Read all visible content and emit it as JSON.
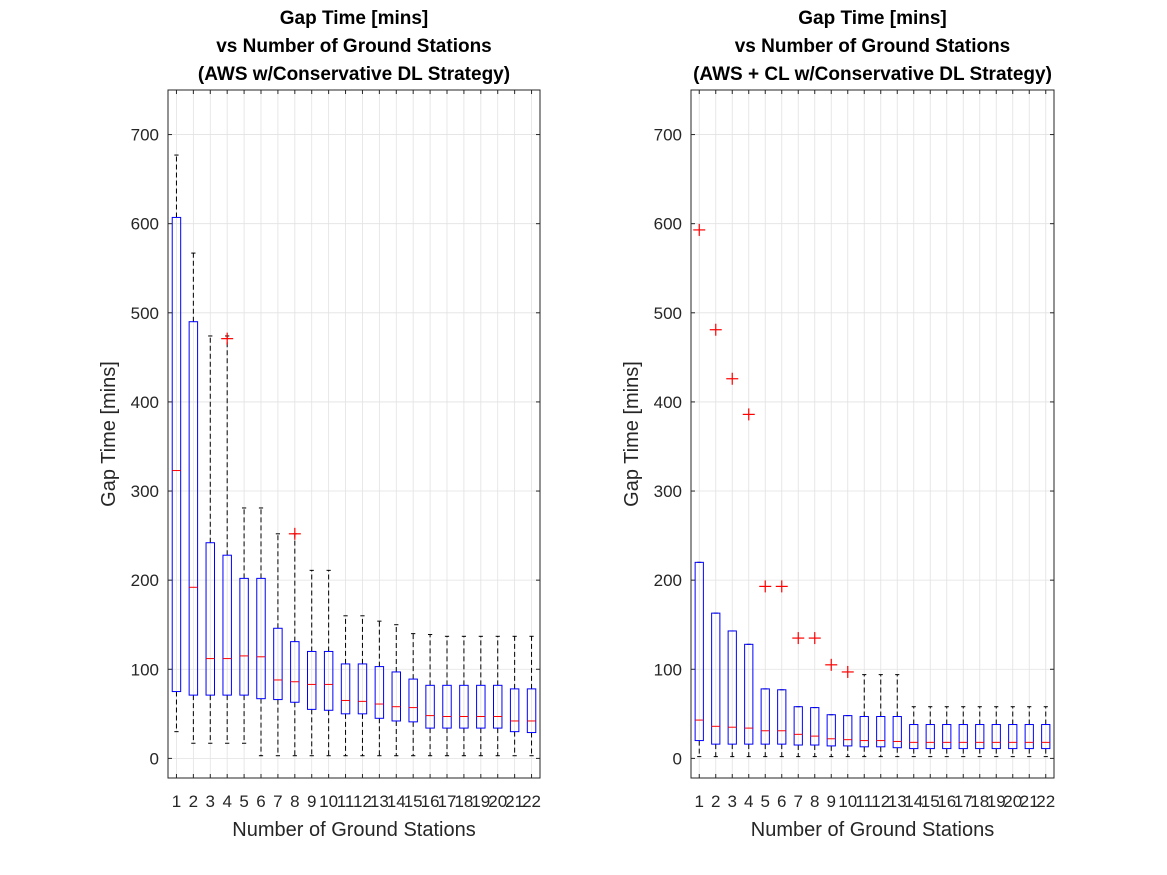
{
  "chart_data": [
    {
      "type": "boxplot",
      "title": [
        "Gap Time [mins]",
        "vs Number of Ground Stations",
        "(AWS w/Conservative DL Strategy)"
      ],
      "xlabel": "Number of Ground Stations",
      "ylabel": "Gap Time [mins]",
      "ylim": [
        -22,
        750
      ],
      "yticks": [
        0,
        100,
        200,
        300,
        400,
        500,
        600,
        700
      ],
      "grid": true,
      "categories": [
        "1",
        "2",
        "3",
        "4",
        "5",
        "6",
        "7",
        "8",
        "9",
        "10",
        "11",
        "12",
        "13",
        "14",
        "15",
        "16",
        "17",
        "18",
        "19",
        "20",
        "21",
        "22"
      ],
      "boxes": [
        {
          "min": 30,
          "q1": 75,
          "median": 323,
          "q3": 607,
          "max": 677,
          "outliers": []
        },
        {
          "min": 17,
          "q1": 71,
          "median": 192,
          "q3": 490,
          "max": 567,
          "outliers": []
        },
        {
          "min": 17,
          "q1": 71,
          "median": 112,
          "q3": 242,
          "max": 474,
          "outliers": []
        },
        {
          "min": 17,
          "q1": 71,
          "median": 112,
          "q3": 228,
          "max": 474,
          "outliers": [
            471
          ]
        },
        {
          "min": 17,
          "q1": 71,
          "median": 115,
          "q3": 202,
          "max": 281,
          "outliers": []
        },
        {
          "min": 3,
          "q1": 67,
          "median": 114,
          "q3": 202,
          "max": 281,
          "outliers": []
        },
        {
          "min": 3,
          "q1": 66,
          "median": 88,
          "q3": 146,
          "max": 252,
          "outliers": []
        },
        {
          "min": 3,
          "q1": 63,
          "median": 86,
          "q3": 131,
          "max": 252,
          "outliers": [
            252
          ]
        },
        {
          "min": 3,
          "q1": 55,
          "median": 83,
          "q3": 120,
          "max": 211,
          "outliers": []
        },
        {
          "min": 3,
          "q1": 54,
          "median": 83,
          "q3": 120,
          "max": 211,
          "outliers": []
        },
        {
          "min": 3,
          "q1": 50,
          "median": 65,
          "q3": 106,
          "max": 160,
          "outliers": []
        },
        {
          "min": 3,
          "q1": 50,
          "median": 64,
          "q3": 106,
          "max": 160,
          "outliers": []
        },
        {
          "min": 3,
          "q1": 45,
          "median": 61,
          "q3": 103,
          "max": 154,
          "outliers": []
        },
        {
          "min": 3,
          "q1": 42,
          "median": 58,
          "q3": 97,
          "max": 150,
          "outliers": []
        },
        {
          "min": 3,
          "q1": 41,
          "median": 57,
          "q3": 89,
          "max": 140,
          "outliers": []
        },
        {
          "min": 3,
          "q1": 34,
          "median": 48,
          "q3": 82,
          "max": 139,
          "outliers": []
        },
        {
          "min": 3,
          "q1": 34,
          "median": 47,
          "q3": 82,
          "max": 137,
          "outliers": []
        },
        {
          "min": 3,
          "q1": 34,
          "median": 47,
          "q3": 82,
          "max": 137,
          "outliers": []
        },
        {
          "min": 3,
          "q1": 34,
          "median": 47,
          "q3": 82,
          "max": 137,
          "outliers": []
        },
        {
          "min": 3,
          "q1": 34,
          "median": 47,
          "q3": 82,
          "max": 137,
          "outliers": []
        },
        {
          "min": 3,
          "q1": 30,
          "median": 42,
          "q3": 78,
          "max": 137,
          "outliers": []
        },
        {
          "min": 3,
          "q1": 29,
          "median": 42,
          "q3": 78,
          "max": 137,
          "outliers": []
        }
      ]
    },
    {
      "type": "boxplot",
      "title": [
        "Gap Time [mins]",
        "vs Number of Ground Stations",
        "(AWS + CL w/Conservative DL Strategy)"
      ],
      "xlabel": "Number of Ground Stations",
      "ylabel": "Gap Time [mins]",
      "ylim": [
        -22,
        750
      ],
      "yticks": [
        0,
        100,
        200,
        300,
        400,
        500,
        600,
        700
      ],
      "grid": true,
      "categories": [
        "1",
        "2",
        "3",
        "4",
        "5",
        "6",
        "7",
        "8",
        "9",
        "10",
        "11",
        "12",
        "13",
        "14",
        "15",
        "16",
        "17",
        "18",
        "19",
        "20",
        "21",
        "22"
      ],
      "boxes": [
        {
          "min": 2,
          "q1": 20,
          "median": 43,
          "q3": 220,
          "max": 220,
          "outliers": [
            593
          ]
        },
        {
          "min": 2,
          "q1": 16,
          "median": 36,
          "q3": 163,
          "max": 163,
          "outliers": [
            481
          ]
        },
        {
          "min": 2,
          "q1": 16,
          "median": 35,
          "q3": 143,
          "max": 143,
          "outliers": [
            426
          ]
        },
        {
          "min": 2,
          "q1": 16,
          "median": 34,
          "q3": 128,
          "max": 128,
          "outliers": [
            386
          ]
        },
        {
          "min": 2,
          "q1": 16,
          "median": 31,
          "q3": 78,
          "max": 78,
          "outliers": [
            193
          ]
        },
        {
          "min": 2,
          "q1": 16,
          "median": 31,
          "q3": 77,
          "max": 77,
          "outliers": [
            193
          ]
        },
        {
          "min": 2,
          "q1": 15,
          "median": 27,
          "q3": 58,
          "max": 58,
          "outliers": [
            135
          ]
        },
        {
          "min": 2,
          "q1": 15,
          "median": 25,
          "q3": 57,
          "max": 57,
          "outliers": [
            135
          ]
        },
        {
          "min": 2,
          "q1": 14,
          "median": 22,
          "q3": 49,
          "max": 49,
          "outliers": [
            105
          ]
        },
        {
          "min": 2,
          "q1": 14,
          "median": 21,
          "q3": 48,
          "max": 48,
          "outliers": [
            97
          ]
        },
        {
          "min": 2,
          "q1": 13,
          "median": 20,
          "q3": 47,
          "max": 94,
          "outliers": []
        },
        {
          "min": 2,
          "q1": 13,
          "median": 20,
          "q3": 47,
          "max": 94,
          "outliers": []
        },
        {
          "min": 2,
          "q1": 12,
          "median": 19,
          "q3": 47,
          "max": 94,
          "outliers": []
        },
        {
          "min": 2,
          "q1": 11,
          "median": 18,
          "q3": 38,
          "max": 58,
          "outliers": []
        },
        {
          "min": 2,
          "q1": 11,
          "median": 18,
          "q3": 38,
          "max": 58,
          "outliers": []
        },
        {
          "min": 2,
          "q1": 11,
          "median": 18,
          "q3": 38,
          "max": 58,
          "outliers": []
        },
        {
          "min": 2,
          "q1": 11,
          "median": 18,
          "q3": 38,
          "max": 58,
          "outliers": []
        },
        {
          "min": 2,
          "q1": 11,
          "median": 18,
          "q3": 38,
          "max": 58,
          "outliers": []
        },
        {
          "min": 2,
          "q1": 11,
          "median": 18,
          "q3": 38,
          "max": 58,
          "outliers": []
        },
        {
          "min": 2,
          "q1": 11,
          "median": 18,
          "q3": 38,
          "max": 58,
          "outliers": []
        },
        {
          "min": 2,
          "q1": 11,
          "median": 18,
          "q3": 38,
          "max": 58,
          "outliers": []
        },
        {
          "min": 2,
          "q1": 11,
          "median": 18,
          "q3": 38,
          "max": 58,
          "outliers": []
        }
      ]
    }
  ],
  "colors": {
    "box": "#0000ff",
    "median": "#ff0000",
    "outlier": "#ff0000",
    "whisker": "#000000",
    "grid": "#e2e2e2",
    "axis": "#262626"
  }
}
